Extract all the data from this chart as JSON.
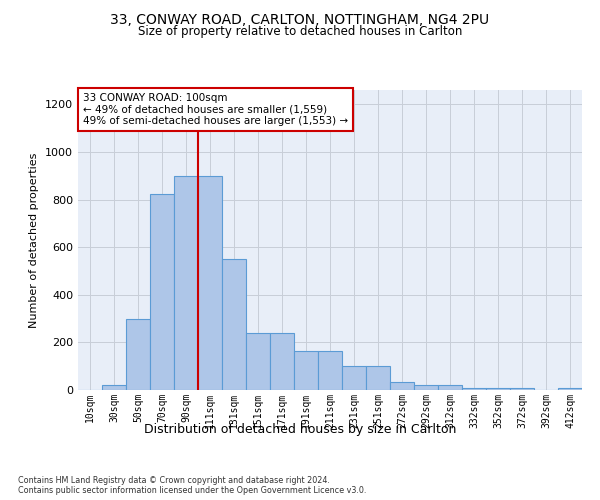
{
  "title_line1": "33, CONWAY ROAD, CARLTON, NOTTINGHAM, NG4 2PU",
  "title_line2": "Size of property relative to detached houses in Carlton",
  "xlabel": "Distribution of detached houses by size in Carlton",
  "ylabel": "Number of detached properties",
  "bar_labels": [
    "10sqm",
    "30sqm",
    "50sqm",
    "70sqm",
    "90sqm",
    "111sqm",
    "131sqm",
    "151sqm",
    "171sqm",
    "191sqm",
    "211sqm",
    "231sqm",
    "251sqm",
    "272sqm",
    "292sqm",
    "312sqm",
    "332sqm",
    "352sqm",
    "372sqm",
    "392sqm",
    "412sqm"
  ],
  "bar_values": [
    0,
    20,
    300,
    825,
    900,
    900,
    550,
    240,
    240,
    165,
    165,
    100,
    100,
    35,
    20,
    20,
    10,
    10,
    10,
    0,
    10
  ],
  "bar_color": "#aec6e8",
  "bar_edgecolor": "#5b9bd5",
  "vline_x": 4.5,
  "vline_color": "#cc0000",
  "annotation_text": "33 CONWAY ROAD: 100sqm\n← 49% of detached houses are smaller (1,559)\n49% of semi-detached houses are larger (1,553) →",
  "annotation_box_color": "#cc0000",
  "ylim": [
    0,
    1260
  ],
  "yticks": [
    0,
    200,
    400,
    600,
    800,
    1000,
    1200
  ],
  "background_color": "#ffffff",
  "plot_bg_color": "#e8eef8",
  "grid_color": "#c8cdd8",
  "footnote": "Contains HM Land Registry data © Crown copyright and database right 2024.\nContains public sector information licensed under the Open Government Licence v3.0."
}
